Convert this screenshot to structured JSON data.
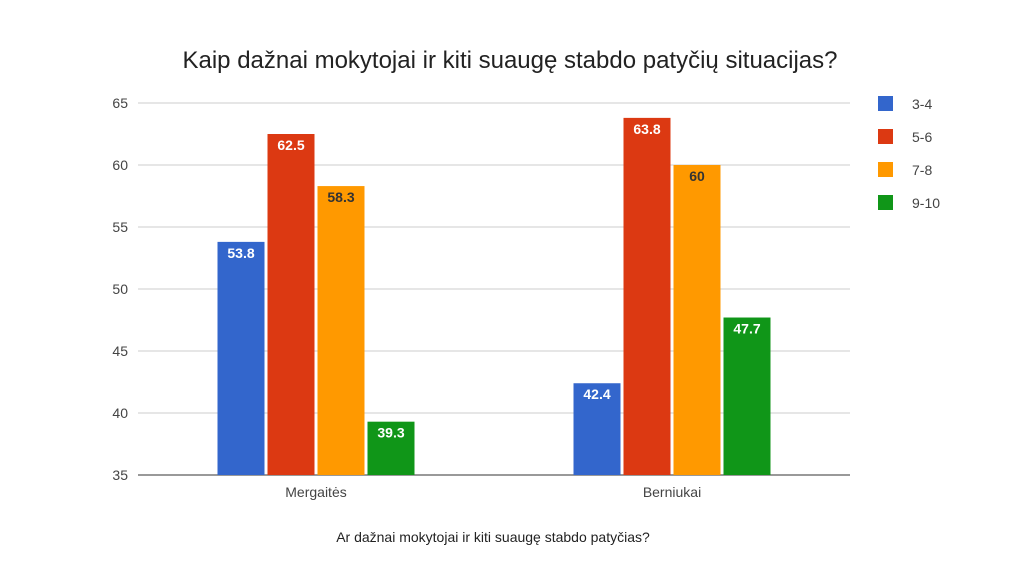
{
  "chart_data": {
    "type": "bar",
    "title": "Kaip dažnai mokytojai ir kiti suaugę stabdo patyčių situacijas?",
    "xlabel": "Ar dažnai mokytojai ir kiti suaugę stabdo patyčias?",
    "ylabel": "",
    "ylim": [
      35,
      65
    ],
    "yticks": [
      35,
      40,
      45,
      50,
      55,
      60,
      65
    ],
    "grid": true,
    "legend_position": "right",
    "categories": [
      "Mergaitės",
      "Berniukai"
    ],
    "series": [
      {
        "name": "3-4",
        "color": "#3366cc",
        "label_color": "#ffffff",
        "values": [
          53.8,
          42.4
        ]
      },
      {
        "name": "5-6",
        "color": "#dc3912",
        "label_color": "#ffffff",
        "values": [
          62.5,
          63.8
        ]
      },
      {
        "name": "7-8",
        "color": "#ff9900",
        "label_color": "#333333",
        "values": [
          58.3,
          60
        ]
      },
      {
        "name": "9-10",
        "color": "#109618",
        "label_color": "#ffffff",
        "values": [
          39.3,
          47.7
        ]
      }
    ]
  }
}
